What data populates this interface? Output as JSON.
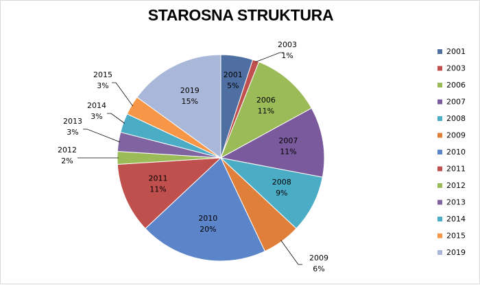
{
  "chart_data": {
    "type": "pie",
    "title": "STAROSNA STRUKTURA",
    "categories": [
      "2001",
      "2003",
      "2006",
      "2007",
      "2008",
      "2009",
      "2010",
      "2011",
      "2012",
      "2013",
      "2014",
      "2015",
      "2019"
    ],
    "values": [
      5,
      1,
      11,
      11,
      9,
      6,
      20,
      11,
      2,
      3,
      3,
      3,
      15
    ],
    "value_labels": [
      "5%",
      "1%",
      "11%",
      "11%",
      "9%",
      "6%",
      "20%",
      "11%",
      "2%",
      "3%",
      "3%",
      "3%",
      "15%"
    ],
    "colors": [
      "#4F6FA2",
      "#C0504D",
      "#9BBB59",
      "#7A5A9C",
      "#4BACC6",
      "#E07F3A",
      "#5B84C9",
      "#C0504D",
      "#9BBB59",
      "#8064A2",
      "#4BACC6",
      "#F79646",
      "#A9B8D9"
    ],
    "legend_position": "right"
  }
}
